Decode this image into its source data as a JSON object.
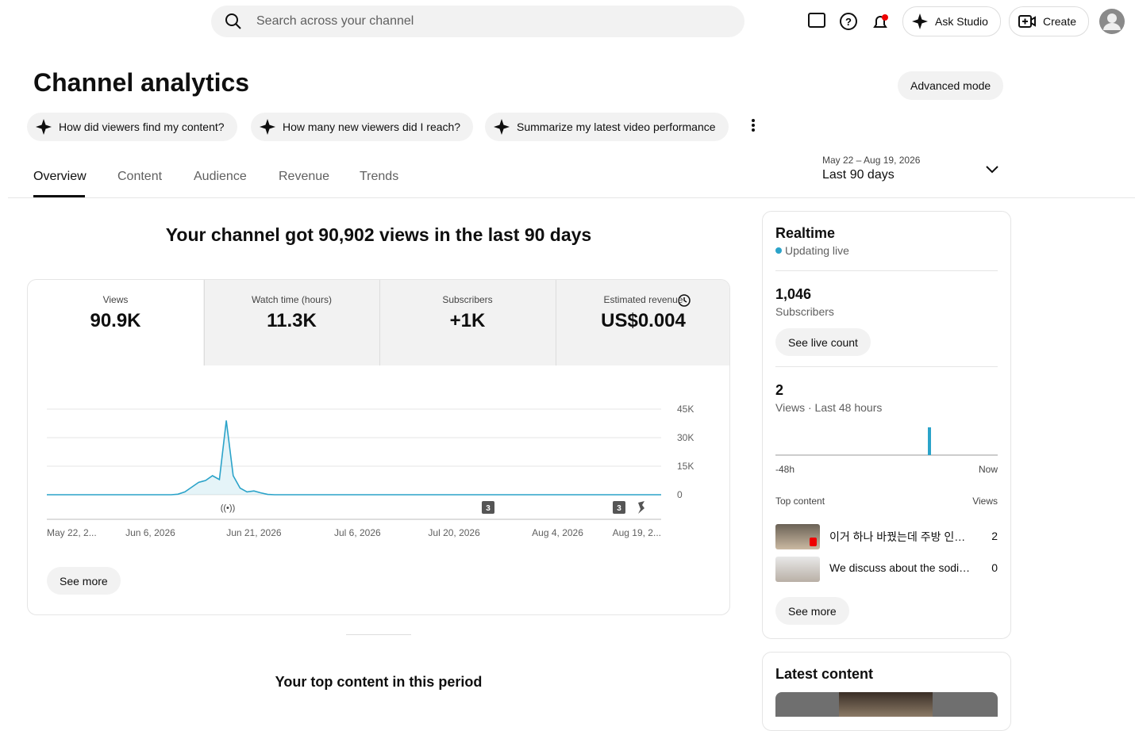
{
  "header": {
    "search_placeholder": "Search across your channel",
    "ask_studio": "Ask Studio",
    "create": "Create"
  },
  "title": "Channel analytics",
  "advanced_mode": "Advanced mode",
  "suggestions": [
    "How did viewers find my content?",
    "How many new viewers did I reach?",
    "Summarize my latest video performance"
  ],
  "tabs": [
    "Overview",
    "Content",
    "Audience",
    "Revenue",
    "Trends"
  ],
  "date_range": {
    "dates": "May 22 – Aug 19, 2026",
    "label": "Last 90 days"
  },
  "headline": "Your channel got 90,902 views in the last 90 days",
  "metrics": [
    {
      "label": "Views",
      "value": "90.9K"
    },
    {
      "label": "Watch time (hours)",
      "value": "11.3K"
    },
    {
      "label": "Subscribers",
      "value": "+1K"
    },
    {
      "label": "Estimated revenue",
      "value": "US$0.004"
    }
  ],
  "chart_data": {
    "type": "line",
    "categories": [
      "May 22, 2...",
      null,
      null,
      null,
      null,
      null,
      null,
      null,
      null,
      null,
      null,
      null,
      null,
      null,
      null,
      "Jun 6, 2026",
      null,
      null,
      null,
      null,
      null,
      null,
      null,
      null,
      null,
      null,
      null,
      null,
      null,
      null,
      "Jun 21, 2026",
      null,
      null,
      null,
      null,
      null,
      null,
      null,
      null,
      null,
      null,
      null,
      null,
      null,
      null,
      "Jul 6, 2026",
      null,
      null,
      null,
      null,
      null,
      null,
      null,
      null,
      null,
      null,
      null,
      null,
      null,
      "Jul 20, 2026",
      null,
      null,
      null,
      null,
      null,
      null,
      null,
      null,
      null,
      null,
      null,
      null,
      null,
      null,
      "Aug 4, 2026",
      null,
      null,
      null,
      null,
      null,
      null,
      null,
      null,
      null,
      null,
      null,
      null,
      null,
      null,
      "Aug 19, 2..."
    ],
    "series": [
      {
        "name": "Views",
        "color": "#2ba3c9",
        "values": [
          0,
          0,
          0,
          0,
          0,
          0,
          0,
          0,
          0,
          0,
          0,
          0,
          0,
          0,
          0,
          0,
          0,
          0,
          0,
          300,
          1500,
          4000,
          6500,
          7500,
          10000,
          8000,
          39000,
          10000,
          3500,
          1500,
          2000,
          1000,
          200,
          0,
          0,
          0,
          0,
          0,
          0,
          0,
          0,
          0,
          0,
          0,
          0,
          0,
          0,
          0,
          0,
          0,
          0,
          0,
          0,
          0,
          0,
          0,
          0,
          0,
          0,
          0,
          0,
          0,
          0,
          0,
          0,
          0,
          0,
          0,
          0,
          0,
          0,
          0,
          0,
          0,
          0,
          0,
          0,
          0,
          0,
          0,
          0,
          0,
          0,
          0,
          0,
          0,
          0,
          0,
          0,
          0
        ]
      }
    ],
    "ylim": [
      0,
      45000
    ],
    "yticks": [
      0,
      {
        "value": 15000,
        "label": "15K"
      },
      {
        "value": 30000,
        "label": "30K"
      },
      {
        "value": 45000,
        "label": "45K"
      }
    ],
    "grid": true,
    "annotations": [
      "3",
      "3"
    ]
  },
  "see_more": "See more",
  "top_content_title": "Your top content in this period",
  "realtime": {
    "title": "Realtime",
    "status": "Updating live",
    "subscribers_value": "1,046",
    "subscribers_label": "Subscribers",
    "see_live_count": "See live count",
    "views_value": 2,
    "views_label": "Views · Last 48 hours",
    "axis_start": "-48h",
    "axis_end": "Now",
    "top_content_label": "Top content",
    "views_column": "Views",
    "rows": [
      {
        "title": "이거 하나 바꿨는데 주방 인…",
        "views": 2
      },
      {
        "title": "We discuss about the sodi…",
        "views": 0
      }
    ],
    "see_more": "See more"
  },
  "latest_content": {
    "title": "Latest content"
  }
}
